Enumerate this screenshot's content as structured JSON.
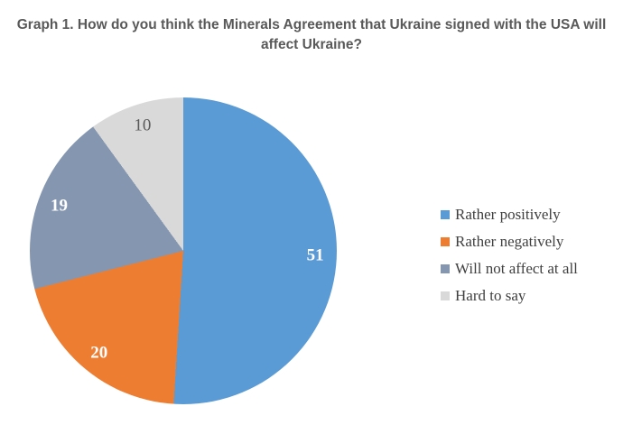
{
  "title": {
    "line1": "Graph 1. How do you think the Minerals Agreement that Ukraine signed with the USA will",
    "line2": "affect Ukraine?"
  },
  "chart_data": {
    "type": "pie",
    "title": "Graph 1. How do you think the Minerals Agreement that Ukraine signed with the USA will affect Ukraine?",
    "labels": [
      "Rather positively",
      "Rather negatively",
      "Will not affect at all",
      "Hard to say"
    ],
    "values": [
      51,
      20,
      19,
      10
    ],
    "colors": [
      "#5B9BD5",
      "#ED7D31",
      "#8496B0",
      "#D9D9D9"
    ],
    "data_label_colors": [
      "#FFFFFF",
      "#FFFFFF",
      "#FFFFFF",
      "#595959"
    ],
    "start_angle_deg": 0,
    "direction": "clockwise",
    "legend_position": "right",
    "title_color": "#595959",
    "legend_text_color": "#404040"
  }
}
